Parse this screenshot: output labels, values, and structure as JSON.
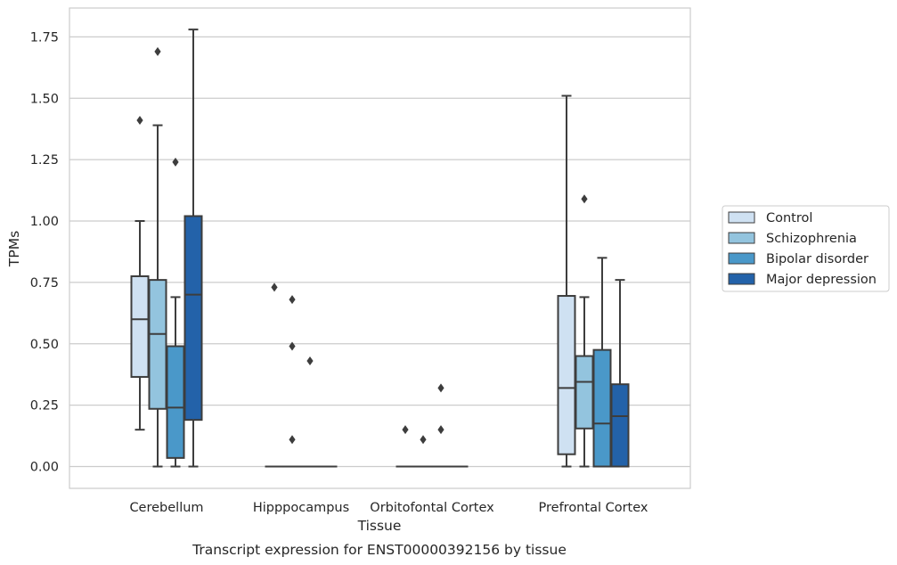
{
  "caption": "Transcript expression for ENST00000392156 by tissue",
  "chart_data": {
    "type": "box",
    "xlabel": "Tissue",
    "ylabel": "TPMs",
    "ylim": [
      -0.09,
      1.87
    ],
    "yticks": [
      "0.00",
      "0.25",
      "0.50",
      "0.75",
      "1.00",
      "1.25",
      "1.50",
      "1.75"
    ],
    "categories": [
      "Cerebellum",
      "Hipppocampus",
      "Orbitofontal Cortex",
      "Prefrontal Cortex"
    ],
    "grid": "horizontal",
    "legend_position": "right",
    "series": [
      {
        "name": "Control",
        "color": "#cfe1f2",
        "boxes": [
          {
            "min": 0.15,
            "q1": 0.365,
            "median": 0.6,
            "q3": 0.775,
            "max": 1.0,
            "outliers": [
              1.41
            ]
          },
          {
            "min": 0.0,
            "q1": 0.0,
            "median": 0.0,
            "q3": 0.0,
            "max": 0.0,
            "outliers": [
              0.73
            ]
          },
          {
            "min": 0.0,
            "q1": 0.0,
            "median": 0.0,
            "q3": 0.0,
            "max": 0.0,
            "outliers": [
              0.15
            ]
          },
          {
            "min": 0.0,
            "q1": 0.05,
            "median": 0.32,
            "q3": 0.695,
            "max": 1.51,
            "outliers": []
          }
        ]
      },
      {
        "name": "Schizophrenia",
        "color": "#93c4de",
        "boxes": [
          {
            "min": 0.0,
            "q1": 0.235,
            "median": 0.54,
            "q3": 0.76,
            "max": 1.39,
            "outliers": [
              1.69
            ]
          },
          {
            "min": 0.0,
            "q1": 0.0,
            "median": 0.0,
            "q3": 0.0,
            "max": 0.0,
            "outliers": [
              0.11,
              0.49,
              0.68
            ]
          },
          {
            "min": 0.0,
            "q1": 0.0,
            "median": 0.0,
            "q3": 0.0,
            "max": 0.0,
            "outliers": [
              0.11
            ]
          },
          {
            "min": 0.0,
            "q1": 0.155,
            "median": 0.345,
            "q3": 0.45,
            "max": 0.69,
            "outliers": [
              1.09
            ]
          }
        ]
      },
      {
        "name": "Bipolar disorder",
        "color": "#4a98c9",
        "boxes": [
          {
            "min": 0.0,
            "q1": 0.035,
            "median": 0.24,
            "q3": 0.49,
            "max": 0.69,
            "outliers": [
              1.24
            ]
          },
          {
            "min": 0.0,
            "q1": 0.0,
            "median": 0.0,
            "q3": 0.0,
            "max": 0.0,
            "outliers": [
              0.43
            ]
          },
          {
            "min": 0.0,
            "q1": 0.0,
            "median": 0.0,
            "q3": 0.0,
            "max": 0.0,
            "outliers": [
              0.15,
              0.32
            ]
          },
          {
            "min": 0.0,
            "q1": 0.0,
            "median": 0.175,
            "q3": 0.475,
            "max": 0.85,
            "outliers": []
          }
        ]
      },
      {
        "name": "Major depression",
        "color": "#2362a9",
        "boxes": [
          {
            "min": 0.0,
            "q1": 0.19,
            "median": 0.7,
            "q3": 1.02,
            "max": 1.78,
            "outliers": []
          },
          {
            "min": 0.0,
            "q1": 0.0,
            "median": 0.0,
            "q3": 0.0,
            "max": 0.0,
            "outliers": []
          },
          {
            "min": 0.0,
            "q1": 0.0,
            "median": 0.0,
            "q3": 0.0,
            "max": 0.0,
            "outliers": []
          },
          {
            "min": 0.0,
            "q1": 0.0,
            "median": 0.205,
            "q3": 0.335,
            "max": 0.76,
            "outliers": []
          }
        ]
      }
    ]
  }
}
